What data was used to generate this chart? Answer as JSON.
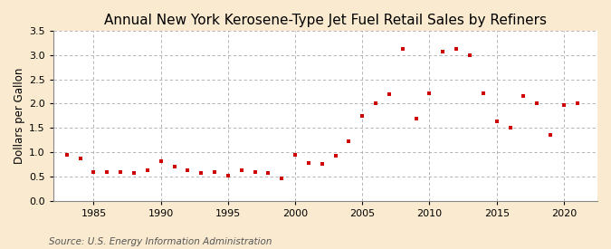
{
  "title": "Annual New York Kerosene-Type Jet Fuel Retail Sales by Refiners",
  "ylabel": "Dollars per Gallon",
  "source": "Source: U.S. Energy Information Administration",
  "background_color": "#faebd0",
  "plot_background_color": "#ffffff",
  "grid_color": "#aaaaaa",
  "marker_color": "#cc0000",
  "years": [
    1983,
    1984,
    1985,
    1986,
    1987,
    1988,
    1989,
    1990,
    1991,
    1992,
    1993,
    1994,
    1995,
    1996,
    1997,
    1998,
    1999,
    2000,
    2001,
    2002,
    2003,
    2004,
    2005,
    2006,
    2007,
    2008,
    2009,
    2010,
    2011,
    2012,
    2013,
    2014,
    2015,
    2016,
    2017,
    2018,
    2019,
    2020,
    2021
  ],
  "values": [
    0.95,
    0.88,
    0.6,
    0.6,
    0.6,
    0.57,
    0.63,
    0.82,
    0.7,
    0.63,
    0.57,
    0.6,
    0.52,
    0.63,
    0.6,
    0.57,
    0.47,
    0.95,
    0.78,
    0.75,
    0.92,
    1.22,
    1.75,
    2.01,
    2.2,
    3.12,
    1.69,
    2.22,
    3.07,
    3.12,
    2.99,
    2.22,
    1.64,
    1.5,
    2.15,
    2.0,
    1.35,
    1.97,
    2.0
  ],
  "xlim": [
    1982,
    2022.5
  ],
  "ylim": [
    0.0,
    3.5
  ],
  "yticks": [
    0.0,
    0.5,
    1.0,
    1.5,
    2.0,
    2.5,
    3.0,
    3.5
  ],
  "xticks": [
    1985,
    1990,
    1995,
    2000,
    2005,
    2010,
    2015,
    2020
  ],
  "title_fontsize": 11,
  "label_fontsize": 8.5,
  "tick_fontsize": 8,
  "source_fontsize": 7.5
}
